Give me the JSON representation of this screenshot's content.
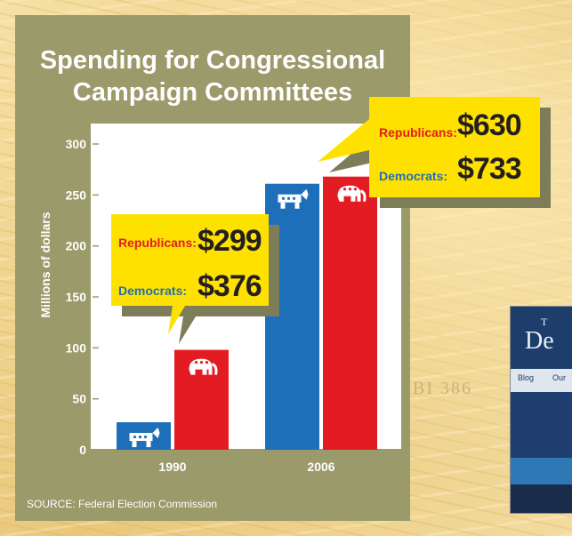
{
  "chart_data": {
    "type": "bar",
    "title": "Spending for Congressional Campaign Committees",
    "title_lines": [
      "Spending for Congressional",
      "Campaign Committees"
    ],
    "categories": [
      "1990",
      "2006"
    ],
    "series": [
      {
        "name": "Democrats",
        "color": "#1e6fba",
        "values": [
          27,
          261
        ]
      },
      {
        "name": "Republicans",
        "color": "#e31b23",
        "values": [
          98,
          268
        ]
      }
    ],
    "ylabel": "Millions of dollars",
    "ylim": [
      0,
      300
    ],
    "yticks": [
      "0",
      "50",
      "100",
      "150",
      "200",
      "250",
      "300"
    ],
    "grid": false,
    "source": "SOURCE:  Federal Election Commission",
    "callouts": [
      {
        "year": "1990",
        "republicans_label": "Republicans:",
        "republicans_value": "$299",
        "democrats_label": "Democrats:",
        "democrats_value": "$376"
      },
      {
        "year": "2006",
        "republicans_label": "Republicans:",
        "republicans_value": "$630",
        "democrats_label": "Democrats:",
        "democrats_value": "$733"
      }
    ]
  },
  "background": {
    "bill_serial": "BI 386",
    "site_title_small": "T",
    "site_title": "De",
    "site_nav": [
      "Blog",
      "Our"
    ]
  }
}
